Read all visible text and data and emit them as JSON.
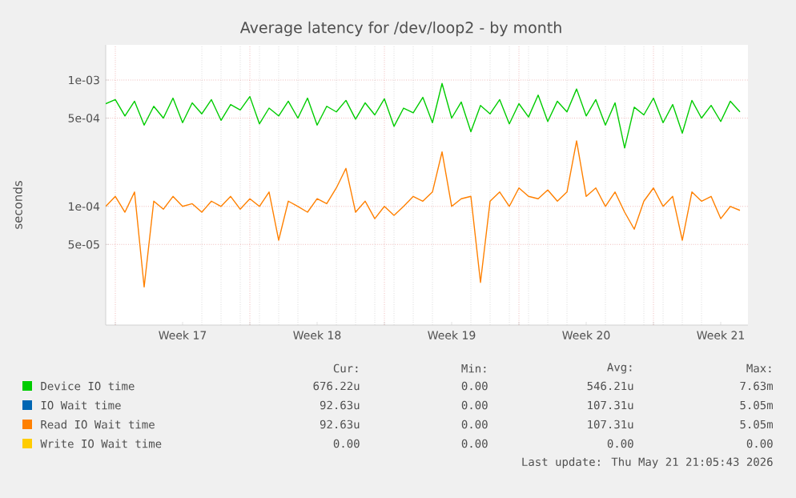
{
  "chart_data": {
    "type": "line",
    "title": "Average latency for /dev/loop2 - by month",
    "ylabel": "seconds",
    "log": "y",
    "grid": true,
    "legend": "bottom",
    "x": [
      "2026-04-19T12:00",
      "2026-04-20T00:00",
      "2026-04-20T12:00",
      "2026-04-21T00:00",
      "2026-04-21T12:00",
      "2026-04-22T00:00",
      "2026-04-22T12:00",
      "2026-04-23T00:00",
      "2026-04-23T12:00",
      "2026-04-24T00:00",
      "2026-04-24T12:00",
      "2026-04-25T00:00",
      "2026-04-25T12:00",
      "2026-04-26T00:00",
      "2026-04-26T12:00",
      "2026-04-27T00:00",
      "2026-04-27T12:00",
      "2026-04-28T00:00",
      "2026-04-28T12:00",
      "2026-04-29T00:00",
      "2026-04-29T12:00",
      "2026-04-30T00:00",
      "2026-04-30T12:00",
      "2026-05-01T00:00",
      "2026-05-01T12:00",
      "2026-05-02T00:00",
      "2026-05-02T12:00",
      "2026-05-03T00:00",
      "2026-05-03T12:00",
      "2026-05-04T00:00",
      "2026-05-04T12:00",
      "2026-05-05T00:00",
      "2026-05-05T12:00",
      "2026-05-06T00:00",
      "2026-05-06T12:00",
      "2026-05-07T00:00",
      "2026-05-07T12:00",
      "2026-05-08T00:00",
      "2026-05-08T12:00",
      "2026-05-09T00:00",
      "2026-05-09T12:00",
      "2026-05-10T00:00",
      "2026-05-10T12:00",
      "2026-05-11T00:00",
      "2026-05-11T12:00",
      "2026-05-12T00:00",
      "2026-05-12T12:00",
      "2026-05-13T00:00",
      "2026-05-13T12:00",
      "2026-05-14T00:00",
      "2026-05-14T12:00",
      "2026-05-15T00:00",
      "2026-05-15T12:00",
      "2026-05-16T00:00",
      "2026-05-16T12:00",
      "2026-05-17T00:00",
      "2026-05-17T12:00",
      "2026-05-18T00:00",
      "2026-05-18T12:00",
      "2026-05-19T00:00",
      "2026-05-19T12:00",
      "2026-05-20T00:00",
      "2026-05-20T12:00",
      "2026-05-21T00:00",
      "2026-05-21T12:00",
      "2026-05-22T00:00",
      "2026-05-22T12:00"
    ],
    "series": [
      {
        "name": "Device IO time",
        "color": "#00cc00",
        "values": [
          0.00065,
          0.0007,
          0.00052,
          0.00068,
          0.00044,
          0.00062,
          0.0005,
          0.00072,
          0.00046,
          0.00066,
          0.00054,
          0.0007,
          0.00048,
          0.00064,
          0.00058,
          0.00074,
          0.00045,
          0.0006,
          0.00052,
          0.00068,
          0.0005,
          0.00072,
          0.00044,
          0.00062,
          0.00056,
          0.00069,
          0.00049,
          0.00066,
          0.00053,
          0.00071,
          0.00043,
          0.0006,
          0.00055,
          0.00073,
          0.00046,
          0.00094,
          0.0005,
          0.00067,
          0.00039,
          0.00063,
          0.00054,
          0.0007,
          0.00045,
          0.00065,
          0.00051,
          0.00076,
          0.00047,
          0.00068,
          0.00056,
          0.00085,
          0.00052,
          0.0007,
          0.00044,
          0.00066,
          0.00029,
          0.00061,
          0.00053,
          0.00072,
          0.00046,
          0.00064,
          0.00038,
          0.00069,
          0.0005,
          0.00063,
          0.00047,
          0.00068,
          0.00056
        ]
      },
      {
        "name": "IO Wait time",
        "color": "#0066b3",
        "values": [
          null,
          null,
          null,
          null,
          null,
          null,
          null,
          null,
          null,
          null,
          null,
          null,
          null,
          null,
          null,
          null,
          null,
          null,
          null,
          null,
          null,
          null,
          null,
          null,
          null,
          null,
          null,
          null,
          null,
          null,
          null,
          null,
          null,
          null,
          null,
          null,
          null,
          null,
          null,
          null,
          null,
          null,
          null,
          null,
          null,
          null,
          null,
          null,
          null,
          null,
          null,
          null,
          null,
          null,
          null,
          null,
          null,
          null,
          null,
          null,
          null,
          null,
          null,
          null,
          null,
          null,
          null
        ]
      },
      {
        "name": "Read IO Wait time",
        "color": "#ff8000",
        "values": [
          0.0001,
          0.00012,
          9e-05,
          0.00013,
          2.3e-05,
          0.00011,
          9.5e-05,
          0.00012,
          0.0001,
          0.000105,
          9e-05,
          0.00011,
          0.0001,
          0.00012,
          9.5e-05,
          0.000115,
          0.0001,
          0.00013,
          5.4e-05,
          0.00011,
          0.0001,
          9e-05,
          0.000115,
          0.000105,
          0.00014,
          0.0002,
          9e-05,
          0.00011,
          8e-05,
          0.0001,
          8.5e-05,
          0.0001,
          0.00012,
          0.00011,
          0.00013,
          0.00027,
          0.0001,
          0.000115,
          0.00012,
          2.5e-05,
          0.00011,
          0.00013,
          0.0001,
          0.00014,
          0.00012,
          0.000115,
          0.000135,
          0.00011,
          0.00013,
          0.00033,
          0.00012,
          0.00014,
          0.0001,
          0.00013,
          9e-05,
          6.6e-05,
          0.00011,
          0.00014,
          0.0001,
          0.00012,
          5.4e-05,
          0.00013,
          0.00011,
          0.00012,
          8e-05,
          0.0001,
          9.3e-05
        ]
      },
      {
        "name": "Write IO Wait time",
        "color": "#ffcc00",
        "values": [
          null,
          null,
          null,
          null,
          null,
          null,
          null,
          null,
          null,
          null,
          null,
          null,
          null,
          null,
          null,
          null,
          null,
          null,
          null,
          null,
          null,
          null,
          null,
          null,
          null,
          null,
          null,
          null,
          null,
          null,
          null,
          null,
          null,
          null,
          null,
          null,
          null,
          null,
          null,
          null,
          null,
          null,
          null,
          null,
          null,
          null,
          null,
          null,
          null,
          null,
          null,
          null,
          null,
          null,
          null,
          null,
          null,
          null,
          null,
          null,
          null,
          null,
          null,
          null,
          null,
          null,
          null
        ]
      }
    ],
    "xlim": [
      "2026-04-19T12:00",
      "2026-05-22T22:00"
    ],
    "xticks": [
      {
        "value": "2026-04-20T00:00",
        "label": null
      },
      {
        "value": "2026-04-23T12:00",
        "label": "Week 17"
      },
      {
        "value": "2026-04-27T00:00",
        "label": null
      },
      {
        "value": "2026-04-30T12:00",
        "label": "Week 18"
      },
      {
        "value": "2026-05-04T00:00",
        "label": null
      },
      {
        "value": "2026-05-07T12:00",
        "label": "Week 19"
      },
      {
        "value": "2026-05-11T00:00",
        "label": null
      },
      {
        "value": "2026-05-14T12:00",
        "label": "Week 20"
      },
      {
        "value": "2026-05-18T00:00",
        "label": null
      },
      {
        "value": "2026-05-21T12:00",
        "label": "Week 21"
      }
    ],
    "ylim": [
      1.15e-05,
      0.0019
    ],
    "yticks": [
      {
        "value": 5e-05,
        "label": "5e-05"
      },
      {
        "value": 0.0001,
        "label": "1e-04"
      },
      {
        "value": 0.0005,
        "label": "5e-04"
      },
      {
        "value": 0.001,
        "label": "1e-03"
      }
    ],
    "annotations": [
      "Cur:",
      "Min:",
      "Avg:",
      "Max:",
      "676.22u",
      "0.00",
      "546.21u",
      "7.63m",
      "92.63u",
      "0.00",
      "107.31u",
      "5.05m",
      "92.63u",
      "0.00",
      "107.31u",
      "5.05m",
      "0.00",
      "0.00",
      "0.00",
      "0.00",
      "Last update: Thu May 21 21:05:43 2026"
    ]
  }
}
